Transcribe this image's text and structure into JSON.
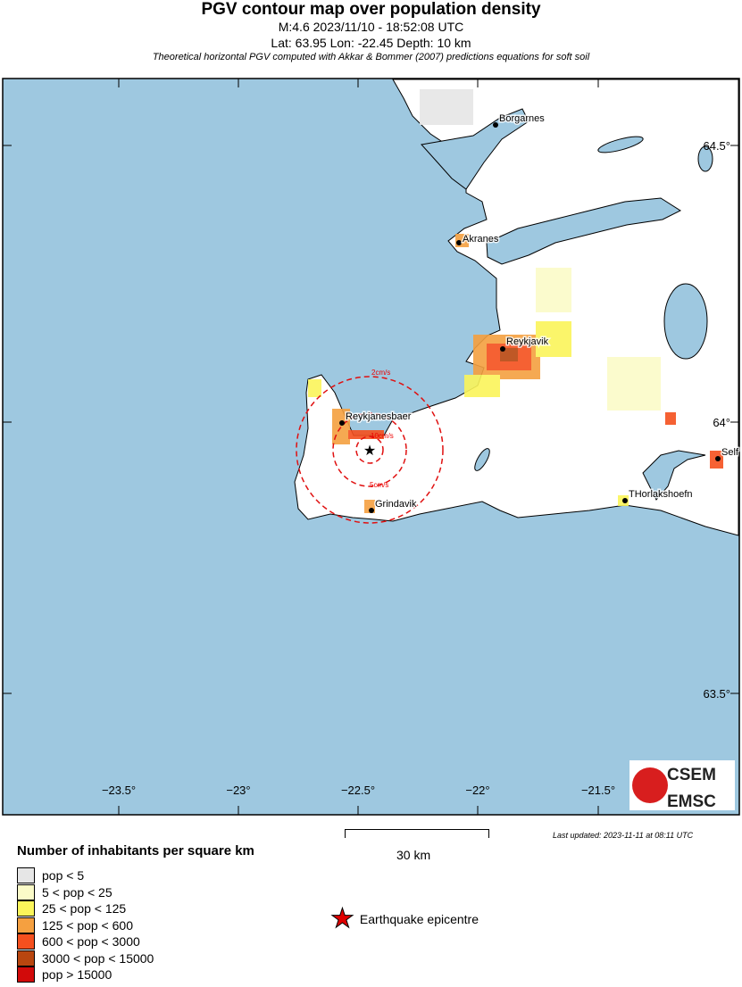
{
  "header": {
    "title": "PGV contour map over population density",
    "event": "M:4.6 2023/11/10 - 18:52:08 UTC",
    "location": "Lat: 63.95 Lon: -22.45 Depth: 10 km",
    "subtitle": "Theoretical horizontal PGV computed with Akkar & Bommer (2007) predictions equations for soft soil"
  },
  "map": {
    "lon_ticks": [
      "−23.5°",
      "−23°",
      "−22.5°",
      "−22°",
      "−21.5°"
    ],
    "lat_ticks": [
      "64.5°",
      "64°",
      "63.5°"
    ],
    "cities": [
      "Borgarnes",
      "Akranes",
      "Reykjavik",
      "Reykjanesbaer",
      "Grindavik",
      "THorlakshoefn",
      "Self"
    ],
    "contours": [
      "2cm/s",
      "10cm/s",
      "5cm/s"
    ],
    "colors": {
      "sea": "#9ec8e0",
      "land": "#ffffff",
      "contour": "#e01010",
      "epicentre": "#e00000"
    }
  },
  "legend": {
    "title": "Number of inhabitants per square km",
    "items": [
      {
        "label": "pop < 5",
        "color": "#e6e6e6"
      },
      {
        "label": "5 < pop < 25",
        "color": "#fbfbc8"
      },
      {
        "label": "25 < pop < 125",
        "color": "#fbf55a"
      },
      {
        "label": "125 < pop < 600",
        "color": "#f5a040"
      },
      {
        "label": "600 < pop < 3000",
        "color": "#f5501e"
      },
      {
        "label": "3000 < pop < 15000",
        "color": "#b9460f"
      },
      {
        "label": "pop > 15000",
        "color": "#d20a0a"
      }
    ],
    "epicentre": "Earthquake epicentre"
  },
  "scale_bar": "30 km",
  "last_updated": "Last updated: 2023-11-11 at 08:11 UTC",
  "logo": {
    "top": "CSEM",
    "bottom": "EMSC"
  }
}
